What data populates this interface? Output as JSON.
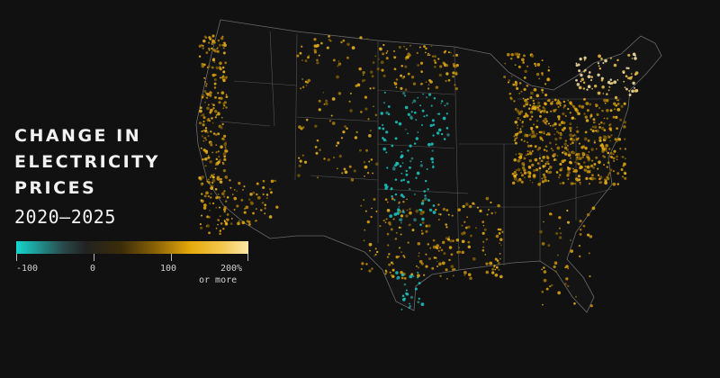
{
  "title_lines": [
    "CHANGE IN",
    "ELECTRICITY",
    "PRICES"
  ],
  "years": "2020–2025",
  "legend": {
    "ticks": [
      "-100",
      "0",
      "100",
      "200%"
    ],
    "max_note": "or more",
    "colors": {
      "low": "#14d6d0",
      "zero": "#222222",
      "mid": "#e5a90b",
      "high": "#fde7a8"
    }
  },
  "background": "#111111"
}
